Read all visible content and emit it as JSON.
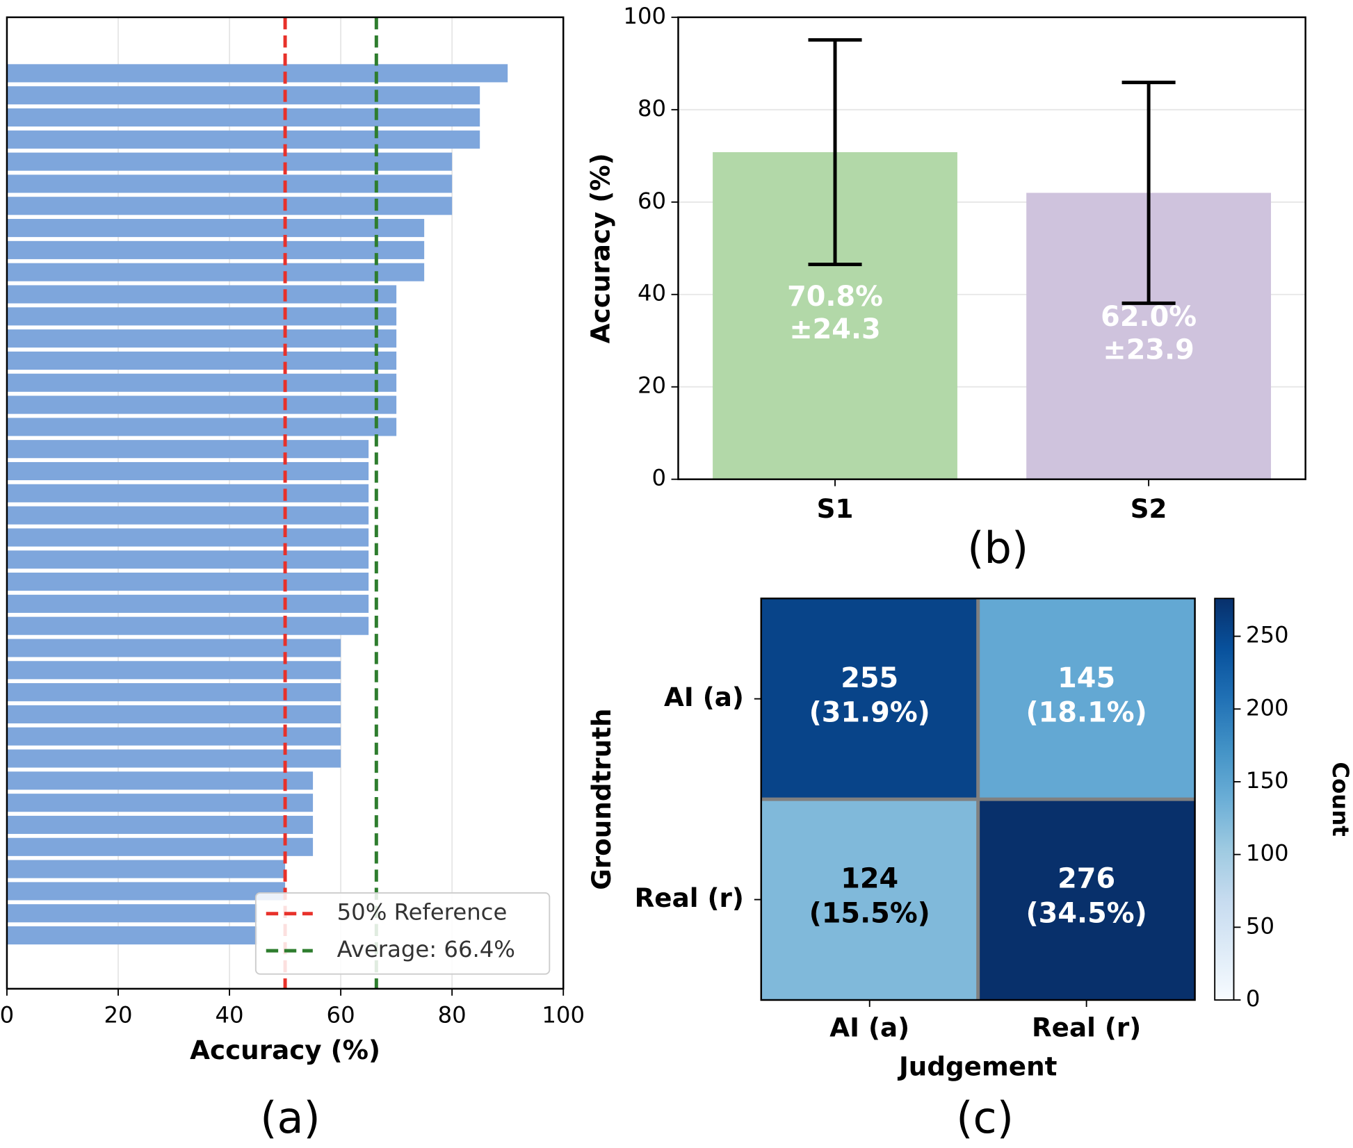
{
  "chart_data": [
    {
      "type": "hbar",
      "caption": "(a)",
      "xlabel": "Accuracy (%)",
      "values": [
        90,
        85,
        85,
        85,
        80,
        80,
        80,
        75,
        75,
        75,
        70,
        70,
        70,
        70,
        70,
        70,
        70,
        65,
        65,
        65,
        65,
        65,
        65,
        65,
        65,
        65,
        60,
        60,
        60,
        60,
        60,
        60,
        55,
        55,
        55,
        55,
        50,
        50,
        45,
        45
      ],
      "color": "#7ea6dc",
      "xlim": [
        0,
        100
      ],
      "xticks": [
        0,
        20,
        40,
        60,
        80,
        100
      ],
      "grid": true,
      "lines": [
        {
          "name": "50% Reference",
          "value": 50,
          "color": "#e8312a"
        },
        {
          "name": "Average: 66.4%",
          "value": 66.4,
          "color": "#2e7d2e"
        }
      ],
      "legend": "lower right"
    },
    {
      "type": "bar",
      "caption": "(b)",
      "ylabel": "Accuracy (%)",
      "categories": [
        "S1",
        "S2"
      ],
      "values": [
        70.8,
        62.0
      ],
      "value_labels": [
        "70.8%",
        "62.0%"
      ],
      "errors": [
        24.3,
        23.9
      ],
      "error_labels": [
        "±24.3",
        "±23.9"
      ],
      "colors": [
        "#b2d8a8",
        "#cfc3dd"
      ],
      "ylim": [
        0,
        100
      ],
      "yticks": [
        0,
        20,
        40,
        60,
        80,
        100
      ],
      "grid": true
    },
    {
      "type": "heatmap",
      "caption": "(c)",
      "xlabel": "Judgement",
      "ylabel": "Groundtruth",
      "colorbar_label": "Count",
      "x_categories": [
        "AI (a)",
        "Real (r)"
      ],
      "y_categories": [
        "AI (a)",
        "Real (r)"
      ],
      "values": [
        [
          255,
          145
        ],
        [
          124,
          276
        ]
      ],
      "percent_labels": [
        [
          "(31.9%)",
          "(18.1%)"
        ],
        [
          "(15.5%)",
          "(34.5%)"
        ]
      ],
      "colormap": [
        "#f7fbff",
        "#deebf7",
        "#c6dbef",
        "#9ecae1",
        "#6baed6",
        "#4292c6",
        "#2171b5",
        "#08519c",
        "#08306b"
      ],
      "clim": [
        0,
        276
      ],
      "cticks": [
        0,
        50,
        100,
        150,
        200,
        250
      ]
    }
  ]
}
